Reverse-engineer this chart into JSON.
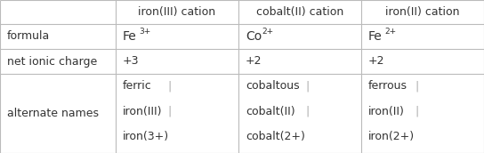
{
  "col_headers": [
    "iron(III) cation",
    "cobalt(II) cation",
    "iron(II) cation"
  ],
  "row_headers": [
    "formula",
    "net ionic charge",
    "alternate names"
  ],
  "charge_row": [
    "+3",
    "+2",
    "+2"
  ],
  "names_row": [
    [
      "ferric",
      "iron(III)",
      "iron(3+)"
    ],
    [
      "cobaltous",
      "cobalt(II)",
      "cobalt(2+)"
    ],
    [
      "ferrous",
      "iron(II)",
      "iron(2+)"
    ]
  ],
  "formula_bases": [
    "Fe",
    "Co",
    "Fe"
  ],
  "formula_sups": [
    "3+",
    "2+",
    "2+"
  ],
  "bg_color": "#ffffff",
  "text_color": "#333333",
  "line_color": "#bbbbbb",
  "sep_color": "#aaaaaa",
  "font_size": 9.0,
  "sup_font_size": 6.5
}
